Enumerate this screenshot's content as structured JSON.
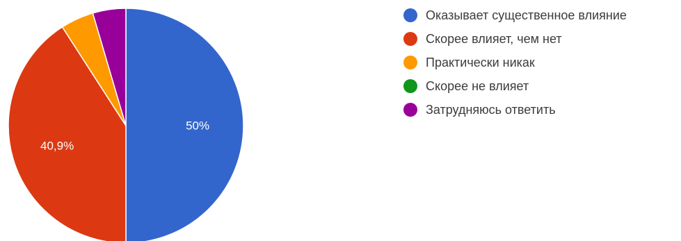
{
  "chart_data": {
    "type": "pie",
    "start_angle_deg": 90,
    "direction": "clockwise",
    "slices": [
      {
        "name": "Оказывает существенное влияние",
        "value": 50,
        "color": "#3366cc",
        "label": "50%"
      },
      {
        "name": "Скорее влияет, чем нет",
        "value": 40.9,
        "color": "#dc3912",
        "label": "40,9%"
      },
      {
        "name": "Практически никак",
        "value": 4.55,
        "color": "#ff9900",
        "label": ""
      },
      {
        "name": "Скорее не влияет",
        "value": 0,
        "color": "#109618",
        "label": ""
      },
      {
        "name": "Затрудняюсь ответить",
        "value": 4.55,
        "color": "#990099",
        "label": ""
      }
    ],
    "legend_position": "right"
  }
}
